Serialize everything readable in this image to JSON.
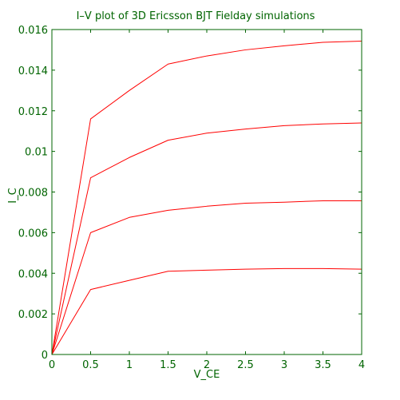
{
  "chart_data": {
    "type": "line",
    "title": "I–V plot of 3D Ericsson BJT Fielday simulations",
    "xlabel": "V_CE",
    "ylabel": "I_C",
    "xlim": [
      0,
      4
    ],
    "ylim": [
      0,
      0.016
    ],
    "xticks": [
      0,
      0.5,
      1,
      1.5,
      2,
      2.5,
      3,
      3.5,
      4
    ],
    "xtick_labels": [
      "0",
      "0.5",
      "1",
      "1.5",
      "2",
      "2.5",
      "3",
      "3.5",
      "4"
    ],
    "yticks": [
      0,
      0.002,
      0.004,
      0.006,
      0.008,
      0.01,
      0.012,
      0.014,
      0.016
    ],
    "ytick_labels": [
      "0",
      "0.002",
      "0.004",
      "0.006",
      "0.008",
      "0.01",
      "0.012",
      "0.014",
      "0.016"
    ],
    "grid": false,
    "x": [
      0,
      0.5,
      1,
      1.5,
      2,
      2.5,
      3,
      3.5,
      4
    ],
    "series": [
      {
        "values": [
          0,
          0.0032,
          0.00365,
          0.0041,
          0.00415,
          0.0042,
          0.00423,
          0.00423,
          0.0042
        ]
      },
      {
        "values": [
          0,
          0.006,
          0.00675,
          0.0071,
          0.0073,
          0.00745,
          0.0075,
          0.00757,
          0.00757
        ]
      },
      {
        "values": [
          0,
          0.0087,
          0.0097,
          0.01055,
          0.0109,
          0.0111,
          0.01127,
          0.01135,
          0.0114
        ]
      },
      {
        "values": [
          0,
          0.0116,
          0.013,
          0.0143,
          0.0147,
          0.015,
          0.0152,
          0.01537,
          0.01543
        ]
      }
    ],
    "colors": {
      "line": "#ff0000",
      "axis": "#006400",
      "text": "#006400",
      "background": "#ffffff"
    }
  }
}
